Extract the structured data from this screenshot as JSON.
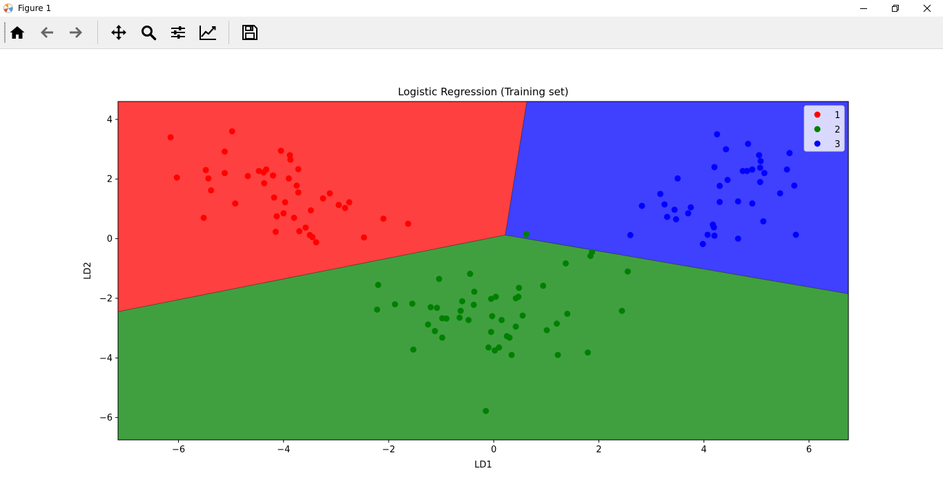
{
  "window": {
    "title": "Figure 1"
  },
  "toolbar": {
    "buttons": [
      {
        "name": "home-button",
        "icon": "home-icon"
      },
      {
        "name": "back-button",
        "icon": "arrow-left-icon"
      },
      {
        "name": "forward-button",
        "icon": "arrow-right-icon"
      },
      {
        "name": "pan-button",
        "icon": "move-icon"
      },
      {
        "name": "zoom-button",
        "icon": "magnifier-icon"
      },
      {
        "name": "subplots-button",
        "icon": "sliders-icon"
      },
      {
        "name": "edit-axes-button",
        "icon": "line-chart-icon"
      },
      {
        "name": "save-button",
        "icon": "floppy-disk-icon"
      }
    ]
  },
  "chart_data": {
    "type": "scatter",
    "title": "Logistic Regression (Training set)",
    "xlabel": "LD1",
    "ylabel": "LD2",
    "xlim": [
      -7.15,
      6.75
    ],
    "ylim": [
      -6.75,
      4.6
    ],
    "xticks": [
      -6,
      -4,
      -2,
      0,
      2,
      4,
      6
    ],
    "yticks": [
      -6,
      -4,
      -2,
      0,
      2,
      4
    ],
    "tick_labels_x": [
      "−6",
      "−4",
      "−2",
      "0",
      "2",
      "4",
      "6"
    ],
    "tick_labels_y": [
      "−6",
      "−4",
      "−2",
      "0",
      "2",
      "4"
    ],
    "legend": {
      "placement": "top-right",
      "entries": [
        "1",
        "2",
        "3"
      ]
    },
    "regions": [
      {
        "class": "1",
        "color": "#ff4040"
      },
      {
        "class": "2",
        "color": "#40a040"
      },
      {
        "class": "3",
        "color": "#4040ff"
      }
    ],
    "boundaries": {
      "center": [
        0.22,
        0.12
      ],
      "red_green_left": [
        -7.15,
        -2.45
      ],
      "red_blue_top": [
        0.63,
        4.6
      ],
      "blue_green_right": [
        6.75,
        -1.85
      ]
    },
    "series": [
      {
        "name": "1",
        "color": "#ff0000",
        "points": [
          [
            -6.15,
            3.4
          ],
          [
            -4.98,
            3.6
          ],
          [
            -6.03,
            2.05
          ],
          [
            -5.52,
            0.7
          ],
          [
            -5.48,
            2.3
          ],
          [
            -5.43,
            2.02
          ],
          [
            -5.38,
            1.62
          ],
          [
            -5.12,
            2.92
          ],
          [
            -5.12,
            2.2
          ],
          [
            -4.92,
            1.18
          ],
          [
            -4.68,
            2.1
          ],
          [
            -4.47,
            2.27
          ],
          [
            -4.38,
            2.22
          ],
          [
            -4.33,
            2.32
          ],
          [
            -4.37,
            1.86
          ],
          [
            -4.2,
            2.12
          ],
          [
            -4.18,
            1.38
          ],
          [
            -4.13,
            0.75
          ],
          [
            -4.15,
            0.23
          ],
          [
            -4.05,
            2.95
          ],
          [
            -3.97,
            1.22
          ],
          [
            -4.0,
            0.85
          ],
          [
            -3.88,
            2.8
          ],
          [
            -3.87,
            2.65
          ],
          [
            -3.9,
            2.02
          ],
          [
            -3.8,
            0.7
          ],
          [
            -3.75,
            1.78
          ],
          [
            -3.72,
            1.55
          ],
          [
            -3.72,
            2.33
          ],
          [
            -3.7,
            0.25
          ],
          [
            -3.58,
            0.37
          ],
          [
            -3.5,
            0.12
          ],
          [
            -3.48,
            0.95
          ],
          [
            -3.45,
            0.05
          ],
          [
            -3.38,
            -0.12
          ],
          [
            -3.25,
            1.35
          ],
          [
            -3.12,
            1.52
          ],
          [
            -2.95,
            1.13
          ],
          [
            -2.83,
            1.03
          ],
          [
            -2.75,
            1.22
          ],
          [
            -2.47,
            0.04
          ],
          [
            -2.1,
            0.67
          ],
          [
            -1.63,
            0.5
          ]
        ]
      },
      {
        "name": "2",
        "color": "#008000",
        "points": [
          [
            0.62,
            0.15
          ],
          [
            1.87,
            -0.45
          ],
          [
            1.84,
            -0.58
          ],
          [
            1.37,
            -0.83
          ],
          [
            2.55,
            -1.1
          ],
          [
            -0.45,
            -1.18
          ],
          [
            -1.04,
            -1.35
          ],
          [
            -2.2,
            -1.55
          ],
          [
            0.48,
            -1.65
          ],
          [
            0.94,
            -1.58
          ],
          [
            -0.37,
            -1.78
          ],
          [
            0.47,
            -1.95
          ],
          [
            0.42,
            -2.0
          ],
          [
            0.04,
            -1.95
          ],
          [
            -0.05,
            -2.02
          ],
          [
            -2.22,
            -2.38
          ],
          [
            -1.88,
            -2.2
          ],
          [
            -1.55,
            -2.18
          ],
          [
            -1.2,
            -2.3
          ],
          [
            -1.08,
            -2.32
          ],
          [
            -0.6,
            -2.1
          ],
          [
            -0.38,
            -2.22
          ],
          [
            -0.63,
            -2.42
          ],
          [
            -0.65,
            -2.65
          ],
          [
            -0.48,
            -2.73
          ],
          [
            -0.9,
            -2.68
          ],
          [
            -0.98,
            -2.67
          ],
          [
            -1.25,
            -2.88
          ],
          [
            -1.12,
            -3.1
          ],
          [
            -0.98,
            -3.32
          ],
          [
            -0.03,
            -2.6
          ],
          [
            0.15,
            -2.73
          ],
          [
            0.55,
            -2.58
          ],
          [
            1.4,
            -2.52
          ],
          [
            1.2,
            -2.85
          ],
          [
            1.01,
            -3.07
          ],
          [
            0.42,
            -2.95
          ],
          [
            -0.05,
            -3.13
          ],
          [
            0.25,
            -3.27
          ],
          [
            0.3,
            -3.32
          ],
          [
            -0.1,
            -3.65
          ],
          [
            0.1,
            -3.65
          ],
          [
            0.02,
            -3.75
          ],
          [
            0.34,
            -3.9
          ],
          [
            1.22,
            -3.9
          ],
          [
            1.79,
            -3.82
          ],
          [
            2.44,
            -2.42
          ],
          [
            -1.53,
            -3.72
          ],
          [
            -0.15,
            -5.78
          ]
        ]
      },
      {
        "name": "3",
        "color": "#0000ff",
        "points": [
          [
            4.25,
            3.5
          ],
          [
            4.42,
            3.0
          ],
          [
            4.84,
            3.18
          ],
          [
            5.63,
            2.87
          ],
          [
            5.05,
            2.8
          ],
          [
            5.08,
            2.6
          ],
          [
            4.2,
            2.4
          ],
          [
            4.74,
            2.27
          ],
          [
            4.82,
            2.27
          ],
          [
            4.92,
            2.32
          ],
          [
            5.07,
            2.38
          ],
          [
            5.15,
            2.2
          ],
          [
            5.58,
            2.32
          ],
          [
            4.45,
            1.97
          ],
          [
            3.5,
            2.02
          ],
          [
            4.3,
            1.77
          ],
          [
            5.07,
            1.9
          ],
          [
            5.72,
            1.78
          ],
          [
            3.17,
            1.5
          ],
          [
            5.45,
            1.52
          ],
          [
            2.82,
            1.1
          ],
          [
            3.25,
            1.15
          ],
          [
            3.44,
            0.97
          ],
          [
            3.7,
            0.85
          ],
          [
            3.75,
            1.05
          ],
          [
            4.3,
            1.23
          ],
          [
            4.65,
            1.25
          ],
          [
            4.92,
            1.18
          ],
          [
            3.3,
            0.73
          ],
          [
            3.47,
            0.65
          ],
          [
            4.17,
            0.47
          ],
          [
            4.19,
            0.38
          ],
          [
            5.13,
            0.58
          ],
          [
            2.6,
            0.12
          ],
          [
            4.07,
            0.13
          ],
          [
            4.2,
            0.1
          ],
          [
            4.65,
            0.0
          ],
          [
            3.98,
            -0.18
          ],
          [
            5.75,
            0.13
          ]
        ]
      }
    ]
  }
}
